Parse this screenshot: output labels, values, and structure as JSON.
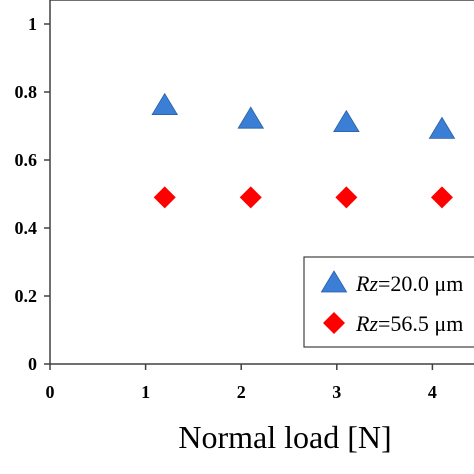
{
  "chart_data": {
    "type": "scatter",
    "xlabel": "Normal load [N]",
    "ylabel": "",
    "xlim": [
      0,
      5
    ],
    "ylim": [
      0,
      1
    ],
    "x_ticks": [
      "0",
      "1",
      "2",
      "3",
      "4"
    ],
    "y_ticks": [
      "0",
      "0.2",
      "0.4",
      "0.6",
      "0.8",
      "1"
    ],
    "grid": false,
    "legend_position": "bottom-right",
    "series": [
      {
        "name_italic": "Rz",
        "name_rest": "=20.0 μm",
        "marker": "triangle",
        "color": "#3a7fd5",
        "x": [
          1.2,
          2.1,
          3.1,
          4.1
        ],
        "y": [
          0.76,
          0.72,
          0.71,
          0.69
        ]
      },
      {
        "name_italic": "Rz",
        "name_rest": "=56.5 μm",
        "marker": "diamond",
        "color": "#ff0000",
        "x": [
          1.2,
          2.1,
          3.1,
          4.1
        ],
        "y": [
          0.49,
          0.49,
          0.49,
          0.49
        ]
      }
    ]
  }
}
